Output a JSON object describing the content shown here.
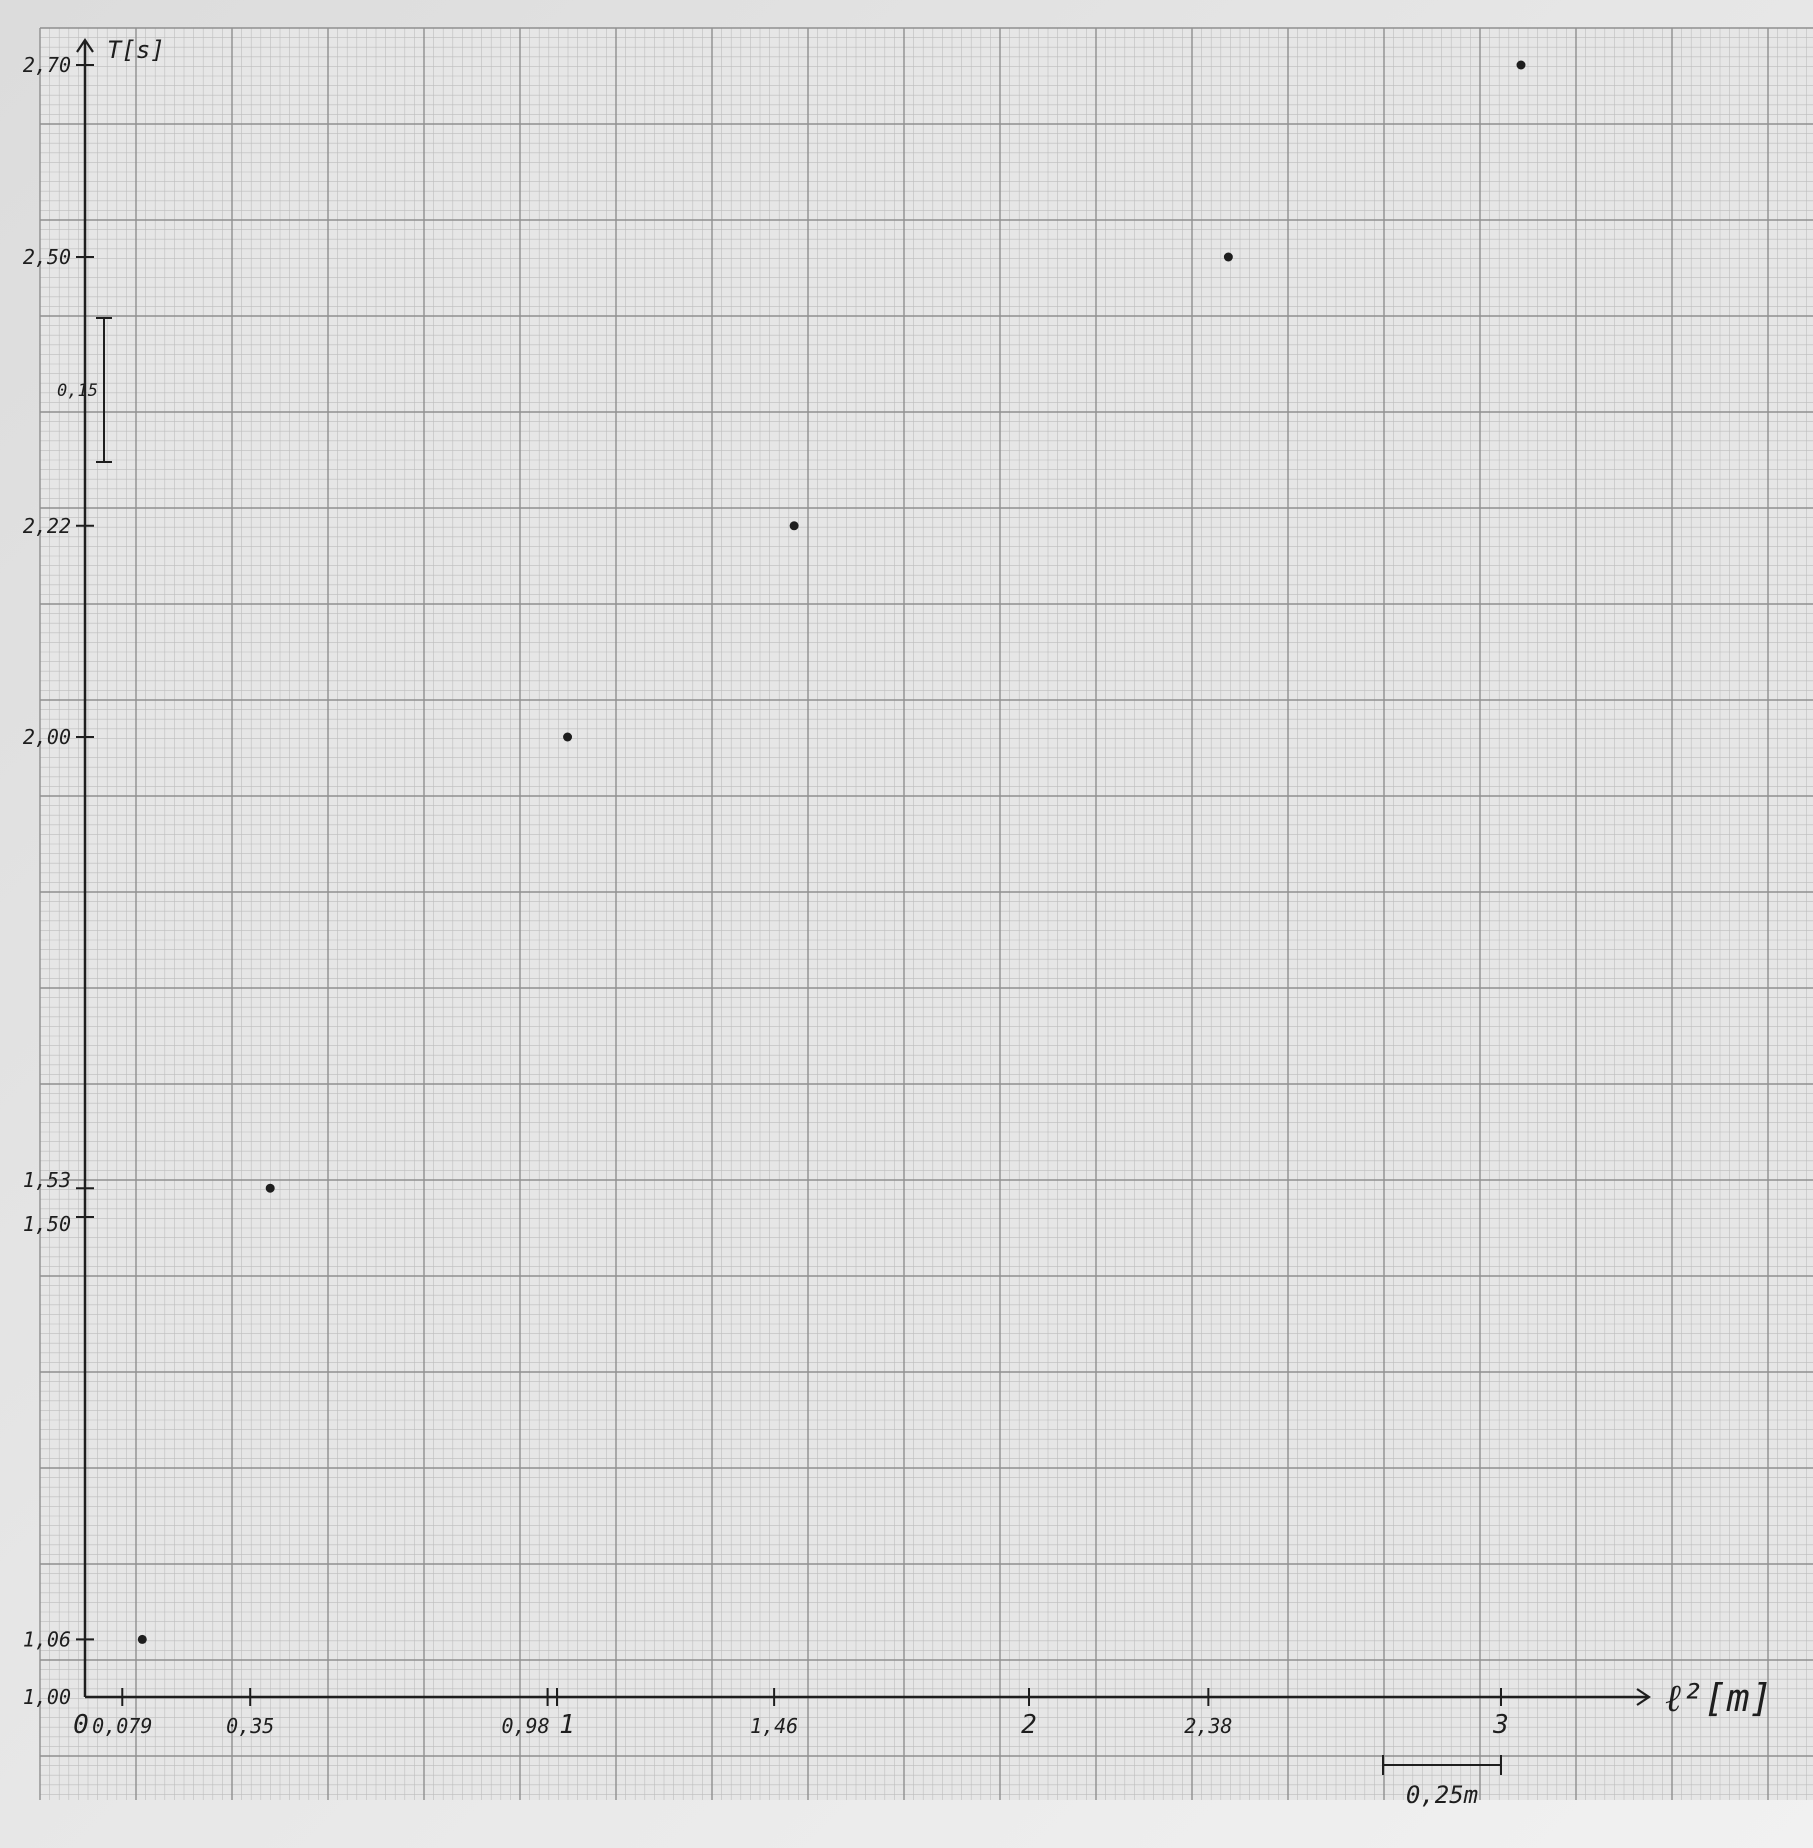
{
  "chart_data": {
    "type": "scatter",
    "title": "",
    "xlabel": "ℓ²[m]",
    "ylabel": "T[s]",
    "xlim": [
      0,
      3.25
    ],
    "ylim": [
      1.0,
      2.7
    ],
    "x_tick_labels": [
      "0",
      "0,079",
      "0,35",
      "0,98",
      "1",
      "1,46",
      "2",
      "2,38",
      "3"
    ],
    "y_tick_labels": [
      "1,00",
      "1,06",
      "1,50",
      "1,53",
      "2,00",
      "2,22",
      "2,50",
      "2,70"
    ],
    "x_scale_bar": "0,25m",
    "y_scale_bar": "0,15",
    "grid": true,
    "points": [
      {
        "x": 0.079,
        "y": 1.06
      },
      {
        "x": 0.35,
        "y": 1.53
      },
      {
        "x": 0.98,
        "y": 2.0
      },
      {
        "x": 1.46,
        "y": 2.22
      },
      {
        "x": 2.38,
        "y": 2.5
      },
      {
        "x": 3.0,
        "y": 2.7
      }
    ]
  },
  "colors": {
    "paper": "#e6e6e6",
    "grid_minor": "#bdbdbd",
    "grid_major": "#8f8f8f",
    "ink": "#1e1e1e"
  }
}
